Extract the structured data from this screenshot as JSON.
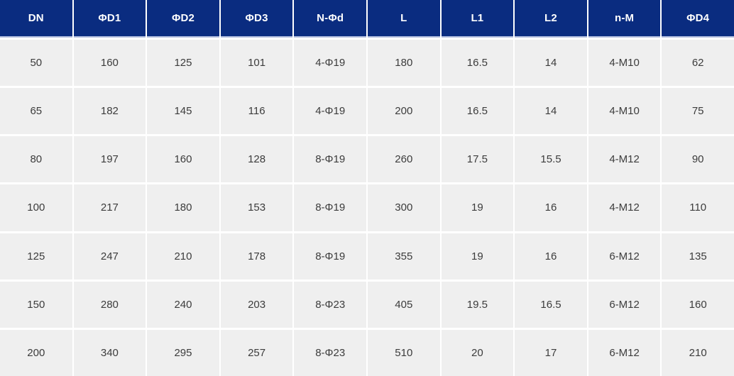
{
  "colors": {
    "header_bg": "#0a2c80",
    "header_text": "#ffffff",
    "header_underline": "#b3bfdf",
    "body_bg": "#efefef",
    "divider": "#ffffff",
    "cell_text": "#3c3c3c"
  },
  "table": {
    "headers": [
      "DN",
      "ΦD1",
      "ΦD2",
      "ΦD3",
      "N-Φd",
      "L",
      "L1",
      "L2",
      "n-M",
      "ΦD4"
    ],
    "rows": [
      [
        "50",
        "160",
        "125",
        "101",
        "4-Φ19",
        "180",
        "16.5",
        "14",
        "4-M10",
        "62"
      ],
      [
        "65",
        "182",
        "145",
        "116",
        "4-Φ19",
        "200",
        "16.5",
        "14",
        "4-M10",
        "75"
      ],
      [
        "80",
        "197",
        "160",
        "128",
        "8-Φ19",
        "260",
        "17.5",
        "15.5",
        "4-M12",
        "90"
      ],
      [
        "100",
        "217",
        "180",
        "153",
        "8-Φ19",
        "300",
        "19",
        "16",
        "4-M12",
        "110"
      ],
      [
        "125",
        "247",
        "210",
        "178",
        "8-Φ19",
        "355",
        "19",
        "16",
        "6-M12",
        "135"
      ],
      [
        "150",
        "280",
        "240",
        "203",
        "8-Φ23",
        "405",
        "19.5",
        "16.5",
        "6-M12",
        "160"
      ],
      [
        "200",
        "340",
        "295",
        "257",
        "8-Φ23",
        "510",
        "20",
        "17",
        "6-M12",
        "210"
      ]
    ]
  },
  "chart_data": {
    "type": "table",
    "title": "",
    "columns": [
      "DN",
      "ΦD1",
      "ΦD2",
      "ΦD3",
      "N-Φd",
      "L",
      "L1",
      "L2",
      "n-M",
      "ΦD4"
    ],
    "rows": [
      [
        "50",
        "160",
        "125",
        "101",
        "4-Φ19",
        "180",
        "16.5",
        "14",
        "4-M10",
        "62"
      ],
      [
        "65",
        "182",
        "145",
        "116",
        "4-Φ19",
        "200",
        "16.5",
        "14",
        "4-M10",
        "75"
      ],
      [
        "80",
        "197",
        "160",
        "128",
        "8-Φ19",
        "260",
        "17.5",
        "15.5",
        "4-M12",
        "90"
      ],
      [
        "100",
        "217",
        "180",
        "153",
        "8-Φ19",
        "300",
        "19",
        "16",
        "4-M12",
        "110"
      ],
      [
        "125",
        "247",
        "210",
        "178",
        "8-Φ19",
        "355",
        "19",
        "16",
        "6-M12",
        "135"
      ],
      [
        "150",
        "280",
        "240",
        "203",
        "8-Φ23",
        "405",
        "19.5",
        "16.5",
        "6-M12",
        "160"
      ],
      [
        "200",
        "340",
        "295",
        "257",
        "8-Φ23",
        "510",
        "20",
        "17",
        "6-M12",
        "210"
      ]
    ]
  }
}
